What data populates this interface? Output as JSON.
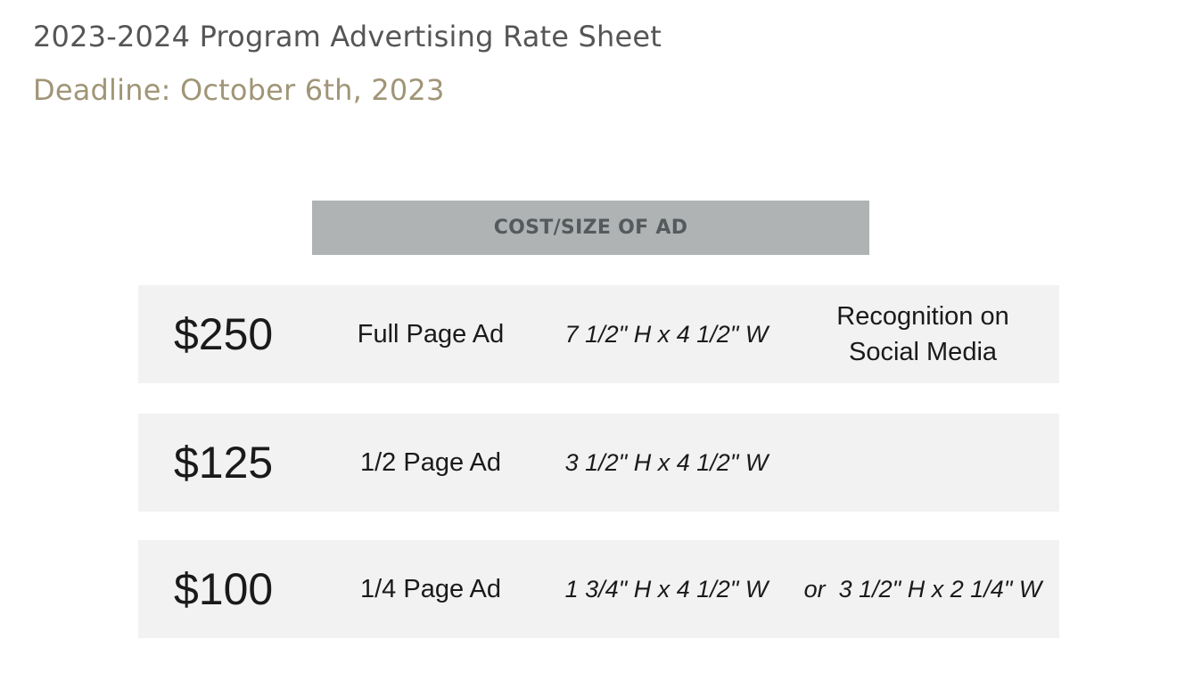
{
  "document": {
    "title": "2023-2024 Program Advertising Rate Sheet",
    "deadline": "Deadline: October 6th, 2023"
  },
  "table": {
    "header": "COST/SIZE OF AD",
    "rows": [
      {
        "price": "$250",
        "ad_type": "Full Page Ad",
        "dimensions": "7 1/2\" H x 4 1/2\" W",
        "extra": "Recognition on Social Media"
      },
      {
        "price": "$125",
        "ad_type": "1/2 Page Ad",
        "dimensions": "3 1/2\" H x 4 1/2\" W",
        "extra": ""
      },
      {
        "price": "$100",
        "ad_type": "1/4 Page Ad",
        "dimensions": "1 3/4\" H x 4 1/2\" W",
        "extra": "or  3 1/2\" H x 2 1/4\" W"
      }
    ]
  },
  "colors": {
    "title": "#555555",
    "deadline": "#a09576",
    "header_bar": "#b0b3b4",
    "header_text": "#555a5c",
    "row_background": "#f2f2f2"
  }
}
